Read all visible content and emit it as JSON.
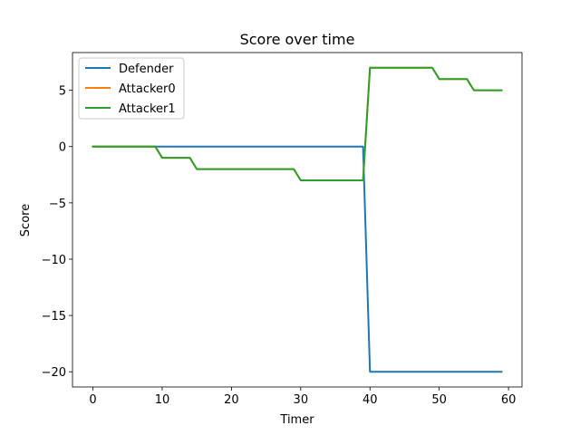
{
  "chart_data": {
    "type": "line",
    "title": "Score over time",
    "xlabel": "Timer",
    "ylabel": "Score",
    "xlim": [
      -2.95,
      61.95
    ],
    "ylim": [
      -21.35,
      8.35
    ],
    "xticks": [
      0,
      10,
      20,
      30,
      40,
      50,
      60
    ],
    "yticks": [
      -20,
      -15,
      -10,
      -5,
      0,
      5
    ],
    "ytick_labels": [
      "−20",
      "−15",
      "−10",
      "−5",
      "0",
      "5"
    ],
    "grid": false,
    "legend_position": "top-left",
    "series": [
      {
        "name": "Defender",
        "color": "#1f77b4",
        "x": [
          0,
          39,
          40,
          59
        ],
        "y": [
          0,
          0,
          -20,
          -20
        ]
      },
      {
        "name": "Attacker0",
        "color": "#ff7f0e",
        "x": [
          0,
          9,
          10,
          14,
          15,
          29,
          30,
          39,
          40,
          49,
          50,
          54,
          55,
          59
        ],
        "y": [
          0,
          0,
          -1,
          -1,
          -2,
          -2,
          -3,
          -3,
          7,
          7,
          6,
          6,
          5,
          5
        ]
      },
      {
        "name": "Attacker1",
        "color": "#2ca02c",
        "x": [
          0,
          9,
          10,
          14,
          15,
          29,
          30,
          39,
          40,
          49,
          50,
          54,
          55,
          59
        ],
        "y": [
          0,
          0,
          -1,
          -1,
          -2,
          -2,
          -3,
          -3,
          7,
          7,
          6,
          6,
          5,
          5
        ]
      }
    ]
  }
}
